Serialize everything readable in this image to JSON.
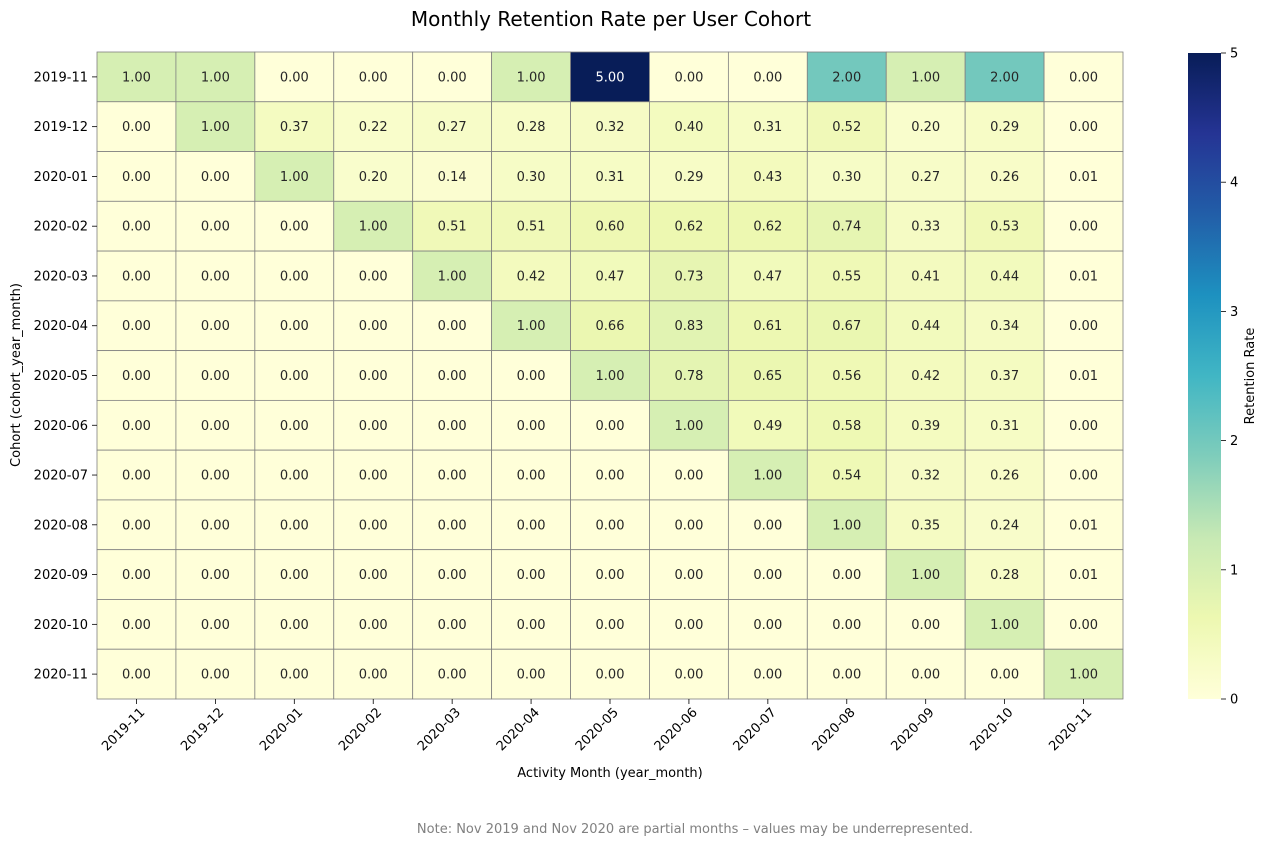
{
  "chart_data": {
    "type": "heatmap",
    "title": "Monthly Retention Rate per User Cohort",
    "xlabel": "Activity Month (year_month)",
    "ylabel": "Cohort (cohort_year_month)",
    "colorbar_label": "Retention Rate",
    "colorbar_ticks": [
      "0",
      "1",
      "2",
      "3",
      "4",
      "5"
    ],
    "vmin": 0,
    "vmax": 5,
    "colormap": "YlGnBu",
    "x_categories": [
      "2019-11",
      "2019-12",
      "2020-01",
      "2020-02",
      "2020-03",
      "2020-04",
      "2020-05",
      "2020-06",
      "2020-07",
      "2020-08",
      "2020-09",
      "2020-10",
      "2020-11"
    ],
    "y_categories": [
      "2019-11",
      "2019-12",
      "2020-01",
      "2020-02",
      "2020-03",
      "2020-04",
      "2020-05",
      "2020-06",
      "2020-07",
      "2020-08",
      "2020-09",
      "2020-10",
      "2020-11"
    ],
    "values": [
      [
        1.0,
        1.0,
        0.0,
        0.0,
        0.0,
        1.0,
        5.0,
        0.0,
        0.0,
        2.0,
        1.0,
        2.0,
        0.0
      ],
      [
        0.0,
        1.0,
        0.37,
        0.22,
        0.27,
        0.28,
        0.32,
        0.4,
        0.31,
        0.52,
        0.2,
        0.29,
        0.0
      ],
      [
        0.0,
        0.0,
        1.0,
        0.2,
        0.14,
        0.3,
        0.31,
        0.29,
        0.43,
        0.3,
        0.27,
        0.26,
        0.01
      ],
      [
        0.0,
        0.0,
        0.0,
        1.0,
        0.51,
        0.51,
        0.6,
        0.62,
        0.62,
        0.74,
        0.33,
        0.53,
        0.0
      ],
      [
        0.0,
        0.0,
        0.0,
        0.0,
        1.0,
        0.42,
        0.47,
        0.73,
        0.47,
        0.55,
        0.41,
        0.44,
        0.01
      ],
      [
        0.0,
        0.0,
        0.0,
        0.0,
        0.0,
        1.0,
        0.66,
        0.83,
        0.61,
        0.67,
        0.44,
        0.34,
        0.0
      ],
      [
        0.0,
        0.0,
        0.0,
        0.0,
        0.0,
        0.0,
        1.0,
        0.78,
        0.65,
        0.56,
        0.42,
        0.37,
        0.01
      ],
      [
        0.0,
        0.0,
        0.0,
        0.0,
        0.0,
        0.0,
        0.0,
        1.0,
        0.49,
        0.58,
        0.39,
        0.31,
        0.0
      ],
      [
        0.0,
        0.0,
        0.0,
        0.0,
        0.0,
        0.0,
        0.0,
        0.0,
        1.0,
        0.54,
        0.32,
        0.26,
        0.0
      ],
      [
        0.0,
        0.0,
        0.0,
        0.0,
        0.0,
        0.0,
        0.0,
        0.0,
        0.0,
        1.0,
        0.35,
        0.24,
        0.01
      ],
      [
        0.0,
        0.0,
        0.0,
        0.0,
        0.0,
        0.0,
        0.0,
        0.0,
        0.0,
        0.0,
        1.0,
        0.28,
        0.01
      ],
      [
        0.0,
        0.0,
        0.0,
        0.0,
        0.0,
        0.0,
        0.0,
        0.0,
        0.0,
        0.0,
        0.0,
        1.0,
        0.0
      ],
      [
        0.0,
        0.0,
        0.0,
        0.0,
        0.0,
        0.0,
        0.0,
        0.0,
        0.0,
        0.0,
        0.0,
        0.0,
        1.0
      ]
    ],
    "value_format": "2 decimals",
    "cell_border_color": "#808080",
    "note": "Note: Nov 2019 and Nov 2020 are partial months – values may be underrepresented."
  }
}
